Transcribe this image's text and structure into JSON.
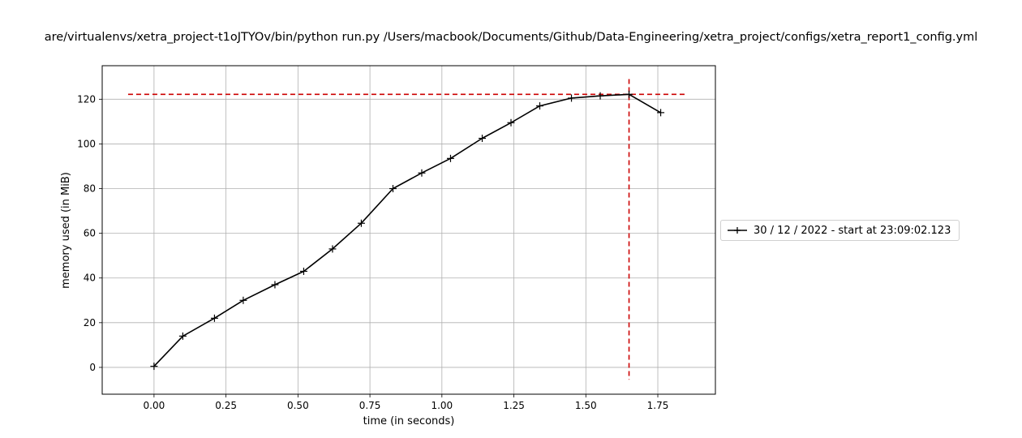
{
  "chart_data": {
    "type": "line",
    "title": "are/virtualenvs/xetra_project-t1oJTYOv/bin/python run.py /Users/macbook/Documents/Github/Data-Engineering/xetra_project/configs/xetra_report1_config.yml",
    "xlabel": "time (in seconds)",
    "ylabel": "memory used (in MiB)",
    "xlim": [
      -0.18,
      1.95
    ],
    "ylim": [
      -12,
      135
    ],
    "xticks": [
      "0.00",
      "0.25",
      "0.50",
      "0.75",
      "1.00",
      "1.25",
      "1.50",
      "1.75"
    ],
    "yticks": [
      "0",
      "20",
      "40",
      "60",
      "80",
      "100",
      "120"
    ],
    "grid": true,
    "legend_position": "right-outside",
    "series": [
      {
        "name": "30 / 12 / 2022 - start at 23:09:02.123",
        "color": "#000000",
        "marker": "plus",
        "x": [
          0.0,
          0.1,
          0.21,
          0.31,
          0.42,
          0.52,
          0.62,
          0.72,
          0.83,
          0.93,
          1.03,
          1.14,
          1.24,
          1.34,
          1.45,
          1.55,
          1.65,
          1.76
        ],
        "y": [
          0.5,
          14,
          22,
          30,
          37,
          43,
          53,
          64.5,
          80,
          87,
          93.5,
          102.5,
          109.5,
          117,
          120.5,
          121.5,
          122.2,
          114
        ]
      }
    ],
    "annotations": [
      {
        "type": "hline",
        "y": 122.2,
        "x_range": [
          -0.09,
          1.85
        ],
        "color": "#cc0000",
        "style": "dashed"
      },
      {
        "type": "vline",
        "x": 1.65,
        "y_range": [
          -5.5,
          129
        ],
        "color": "#cc0000",
        "style": "dashed"
      }
    ]
  }
}
